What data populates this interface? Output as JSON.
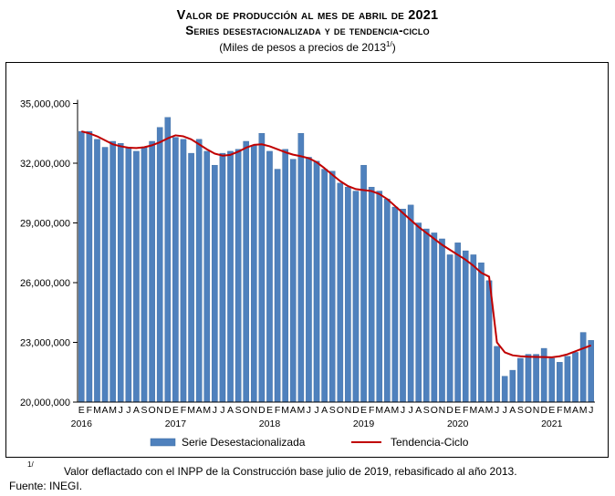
{
  "chart_data": {
    "type": "bar",
    "title": "Valor de producción al mes de abril de 2021",
    "subtitle": "Series desestacionalizada y de tendencia-ciclo",
    "units_note": "(Miles de pesos a precios de 2013",
    "units_note_sup": "1/",
    "units_note_close": ")",
    "ylim": [
      20000000,
      35000000
    ],
    "yticks": [
      20000000,
      23000000,
      26000000,
      29000000,
      32000000,
      35000000
    ],
    "ytick_labels": [
      "20,000,000",
      "23,000,000",
      "26,000,000",
      "29,000,000",
      "32,000,000",
      "35,000,000"
    ],
    "month_labels": [
      "E",
      "F",
      "M",
      "A",
      "M",
      "J",
      "J",
      "A",
      "S",
      "O",
      "N",
      "D"
    ],
    "year_labels": [
      "2016",
      "2017",
      "2018",
      "2019",
      "2020",
      "2021"
    ],
    "categories_start": "2016-01",
    "grid": false,
    "legend_position": "bottom",
    "series": [
      {
        "name": "Serie Desestacionalizada",
        "type": "bar",
        "color": "#4f81bd",
        "values": [
          33600000,
          33600000,
          33200000,
          32800000,
          33100000,
          33000000,
          32800000,
          32600000,
          32800000,
          33100000,
          33800000,
          34300000,
          33300000,
          33200000,
          32500000,
          33200000,
          32600000,
          31900000,
          32500000,
          32600000,
          32700000,
          33100000,
          32900000,
          33500000,
          32600000,
          31700000,
          32700000,
          32200000,
          33500000,
          32300000,
          32100000,
          31700000,
          31600000,
          31000000,
          30800000,
          30600000,
          31900000,
          30800000,
          30600000,
          30200000,
          29800000,
          29700000,
          29900000,
          29000000,
          28700000,
          28500000,
          28200000,
          27400000,
          28000000,
          27600000,
          27400000,
          27000000,
          26100000,
          22800000,
          21300000,
          21600000,
          22200000,
          22400000,
          22400000,
          22700000,
          22200000,
          22000000,
          22300000,
          22500000,
          23500000,
          23100000
        ]
      },
      {
        "name": "Tendencia-Ciclo",
        "type": "line",
        "color": "#c00000",
        "values": [
          33600000,
          33500000,
          33350000,
          33150000,
          32950000,
          32850000,
          32780000,
          32760000,
          32800000,
          32900000,
          33050000,
          33250000,
          33400000,
          33350000,
          33200000,
          32950000,
          32700000,
          32480000,
          32380000,
          32420000,
          32580000,
          32780000,
          32920000,
          32950000,
          32850000,
          32700000,
          32550000,
          32430000,
          32350000,
          32250000,
          32050000,
          31750000,
          31420000,
          31100000,
          30850000,
          30700000,
          30650000,
          30600000,
          30450000,
          30200000,
          29850000,
          29500000,
          29150000,
          28800000,
          28500000,
          28200000,
          27900000,
          27650000,
          27400000,
          27150000,
          26850000,
          26500000,
          26300000,
          23000000,
          22500000,
          22350000,
          22300000,
          22280000,
          22270000,
          22260000,
          22250000,
          22300000,
          22400000,
          22550000,
          22700000,
          22850000
        ]
      }
    ]
  },
  "legend": {
    "bar_label": "Serie Desestacionalizada",
    "line_label": "Tendencia-Ciclo"
  },
  "footnote": {
    "mark": "1/",
    "text": "Valor deflactado con el INPP de la Construcción base julio de 2019, rebasificado al año 2013."
  },
  "source": "Fuente: INEGI."
}
